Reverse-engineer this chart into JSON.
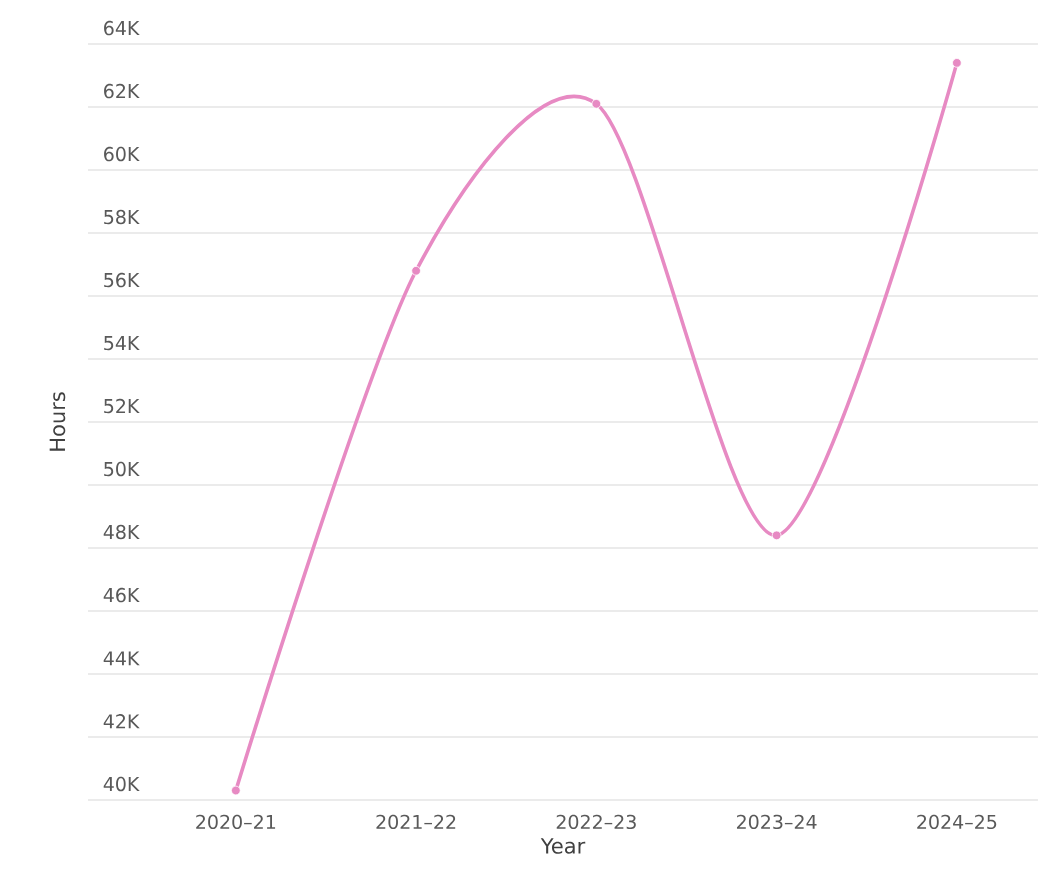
{
  "chart_data": {
    "type": "line",
    "xlabel": "Year",
    "ylabel": "Hours",
    "categories": [
      "2020–21",
      "2021–22",
      "2022–23",
      "2023–24",
      "2024–25"
    ],
    "series": [
      {
        "color": "#e78ac3",
        "values": [
          40300,
          56800,
          62100,
          48400,
          63400
        ]
      }
    ],
    "ylim": [
      40000,
      64000
    ],
    "yticks": [
      {
        "value": 40000,
        "label": "40K"
      },
      {
        "value": 42000,
        "label": "42K"
      },
      {
        "value": 44000,
        "label": "44K"
      },
      {
        "value": 46000,
        "label": "46K"
      },
      {
        "value": 48000,
        "label": "48K"
      },
      {
        "value": 50000,
        "label": "50K"
      },
      {
        "value": 52000,
        "label": "52K"
      },
      {
        "value": 54000,
        "label": "54K"
      },
      {
        "value": 56000,
        "label": "56K"
      },
      {
        "value": 58000,
        "label": "58K"
      },
      {
        "value": 60000,
        "label": "60K"
      },
      {
        "value": 62000,
        "label": "62K"
      },
      {
        "value": 64000,
        "label": "64K"
      }
    ],
    "grid": "y",
    "marker": "circle",
    "line_style": "solid"
  }
}
